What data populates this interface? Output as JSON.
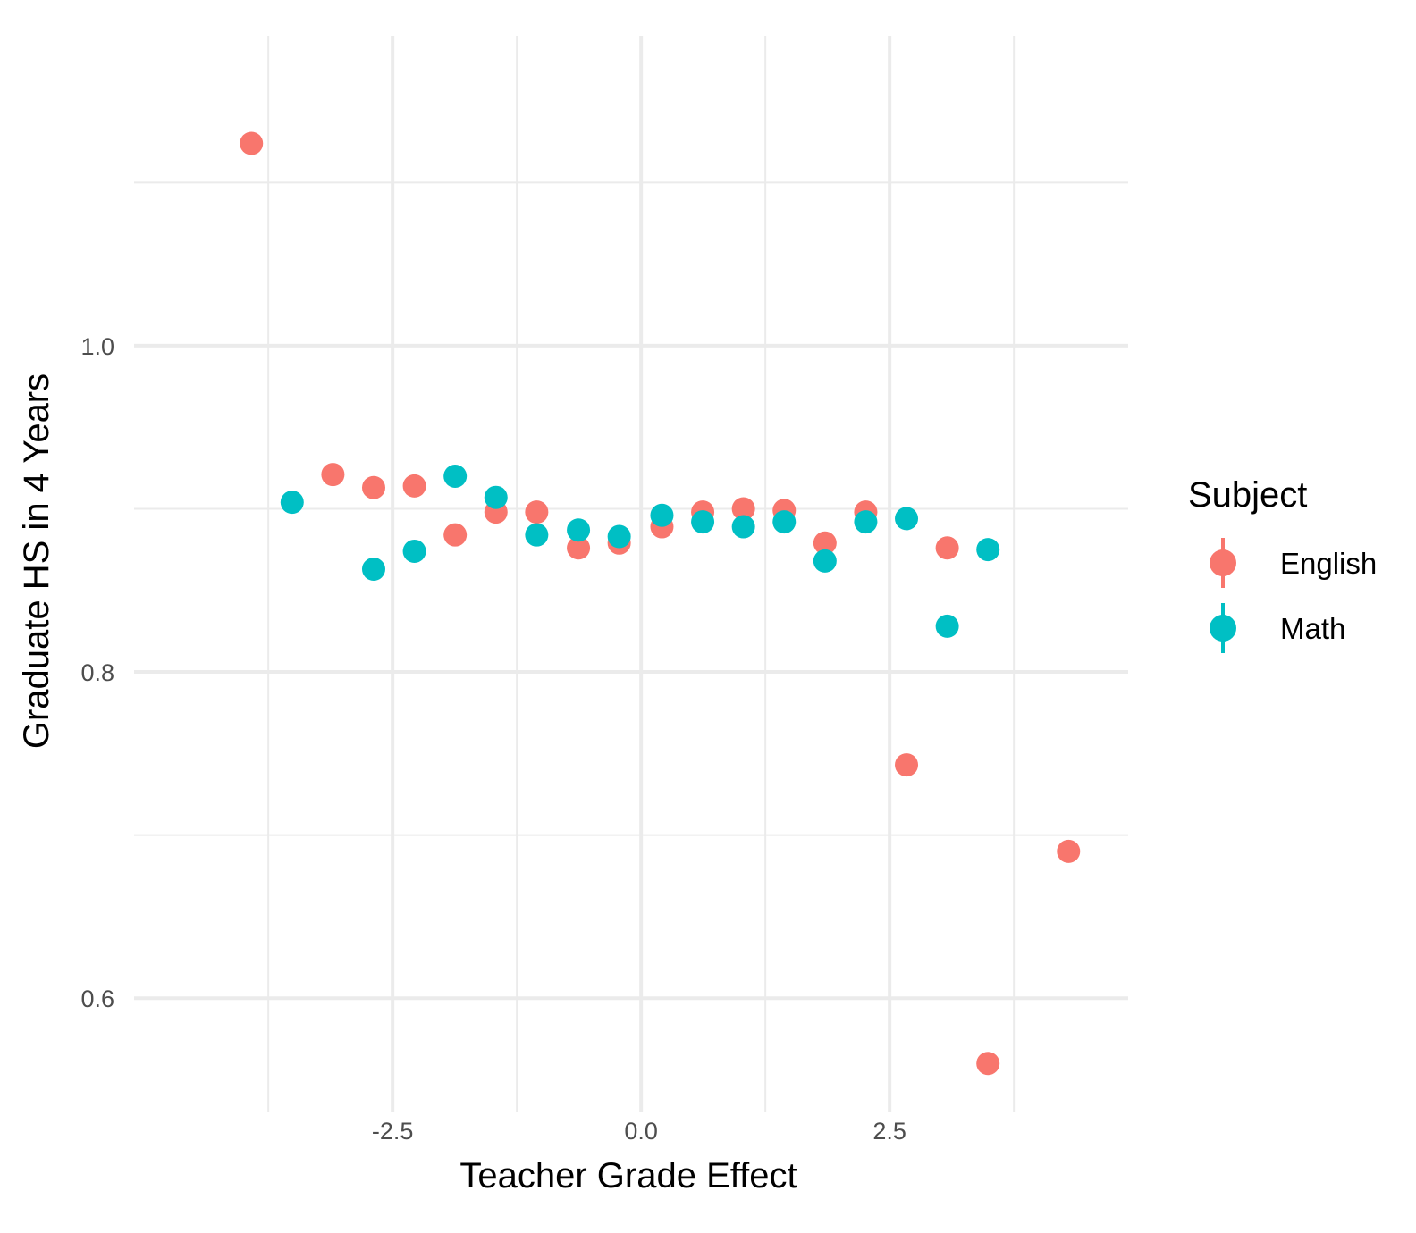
{
  "chart_data": {
    "type": "scatter",
    "title": "",
    "xlabel": "Teacher Grade Effect",
    "ylabel": "Graduate HS in 4 Years",
    "xlim": [
      -5.1,
      4.9
    ],
    "ylim": [
      0.53,
      1.19
    ],
    "x_ticks": [
      -2.5,
      0.0,
      2.5
    ],
    "x_tick_labels": [
      "-2.5",
      "0.0",
      "2.5"
    ],
    "y_ticks": [
      0.6,
      0.8,
      1.0
    ],
    "y_tick_labels": [
      "0.6",
      "0.8",
      "1.0"
    ],
    "grid": true,
    "legend": {
      "title": "Subject",
      "position": "right"
    },
    "series": [
      {
        "name": "English",
        "color": "#F8766D",
        "points": [
          {
            "x": -3.92,
            "y": 1.124
          },
          {
            "x": -3.1,
            "y": 0.921
          },
          {
            "x": -2.69,
            "y": 0.913
          },
          {
            "x": -2.28,
            "y": 0.914
          },
          {
            "x": -1.87,
            "y": 0.884
          },
          {
            "x": -1.46,
            "y": 0.898
          },
          {
            "x": -1.05,
            "y": 0.898
          },
          {
            "x": -0.63,
            "y": 0.876
          },
          {
            "x": -0.22,
            "y": 0.879
          },
          {
            "x": 0.21,
            "y": 0.889
          },
          {
            "x": 0.62,
            "y": 0.898
          },
          {
            "x": 1.03,
            "y": 0.9
          },
          {
            "x": 1.44,
            "y": 0.899
          },
          {
            "x": 1.85,
            "y": 0.879
          },
          {
            "x": 2.26,
            "y": 0.898
          },
          {
            "x": 2.67,
            "y": 0.743
          },
          {
            "x": 3.08,
            "y": 0.876
          },
          {
            "x": 3.49,
            "y": 0.56
          },
          {
            "x": 4.3,
            "y": 0.69
          }
        ]
      },
      {
        "name": "Math",
        "color": "#00BFC4",
        "points": [
          {
            "x": -3.51,
            "y": 0.904
          },
          {
            "x": -2.69,
            "y": 0.863
          },
          {
            "x": -2.28,
            "y": 0.874
          },
          {
            "x": -1.87,
            "y": 0.92
          },
          {
            "x": -1.46,
            "y": 0.907
          },
          {
            "x": -1.05,
            "y": 0.884
          },
          {
            "x": -0.63,
            "y": 0.887
          },
          {
            "x": -0.22,
            "y": 0.883
          },
          {
            "x": 0.21,
            "y": 0.896
          },
          {
            "x": 0.62,
            "y": 0.892
          },
          {
            "x": 1.03,
            "y": 0.889
          },
          {
            "x": 1.44,
            "y": 0.892
          },
          {
            "x": 1.85,
            "y": 0.868
          },
          {
            "x": 2.26,
            "y": 0.892
          },
          {
            "x": 2.67,
            "y": 0.894
          },
          {
            "x": 3.08,
            "y": 0.828
          },
          {
            "x": 3.49,
            "y": 0.875
          }
        ]
      }
    ]
  }
}
